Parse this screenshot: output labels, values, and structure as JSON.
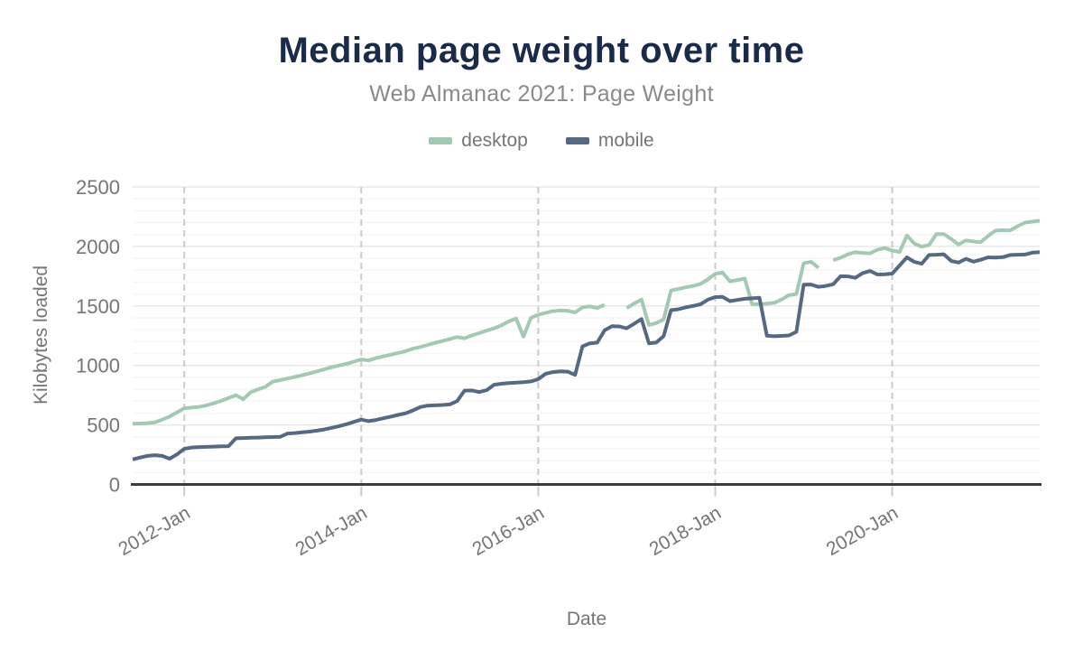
{
  "header": {
    "title": "Median page weight over time",
    "subtitle": "Web Almanac 2021: Page Weight"
  },
  "chart_data": {
    "type": "line",
    "title": "Median page weight over time",
    "subtitle": "Web Almanac 2021: Page Weight",
    "xlabel": "Date",
    "ylabel": "Kilobytes loaded",
    "ylim": [
      0,
      2500
    ],
    "y_ticks": [
      0,
      500,
      1000,
      1500,
      2000,
      2500
    ],
    "minor_gridline_step": 100,
    "grid": "on",
    "legend_position": "top",
    "x_unit": "month",
    "x_ticks": [
      {
        "label": "2012-Jan",
        "month": "2012-01"
      },
      {
        "label": "2014-Jan",
        "month": "2014-01"
      },
      {
        "label": "2016-Jan",
        "month": "2016-01"
      },
      {
        "label": "2018-Jan",
        "month": "2018-01"
      },
      {
        "label": "2020-Jan",
        "month": "2020-01"
      }
    ],
    "x": [
      "2011-06",
      "2011-07",
      "2011-08",
      "2011-09",
      "2011-10",
      "2011-11",
      "2011-12",
      "2012-01",
      "2012-02",
      "2012-03",
      "2012-04",
      "2012-05",
      "2012-06",
      "2012-07",
      "2012-08",
      "2012-09",
      "2012-10",
      "2012-11",
      "2012-12",
      "2013-01",
      "2013-02",
      "2013-03",
      "2013-04",
      "2013-05",
      "2013-06",
      "2013-07",
      "2013-08",
      "2013-09",
      "2013-10",
      "2013-11",
      "2013-12",
      "2014-01",
      "2014-02",
      "2014-03",
      "2014-04",
      "2014-05",
      "2014-06",
      "2014-07",
      "2014-08",
      "2014-09",
      "2014-10",
      "2014-11",
      "2014-12",
      "2015-01",
      "2015-02",
      "2015-03",
      "2015-04",
      "2015-05",
      "2015-06",
      "2015-07",
      "2015-08",
      "2015-09",
      "2015-10",
      "2015-11",
      "2015-12",
      "2016-01",
      "2016-02",
      "2016-03",
      "2016-04",
      "2016-05",
      "2016-06",
      "2016-07",
      "2016-08",
      "2016-09",
      "2016-10",
      "2016-11",
      "2016-12",
      "2017-01",
      "2017-02",
      "2017-03",
      "2017-04",
      "2017-05",
      "2017-06",
      "2017-07",
      "2017-08",
      "2017-09",
      "2017-10",
      "2017-11",
      "2017-12",
      "2018-01",
      "2018-02",
      "2018-03",
      "2018-04",
      "2018-05",
      "2018-06",
      "2018-07",
      "2018-08",
      "2018-09",
      "2018-10",
      "2018-11",
      "2018-12",
      "2019-01",
      "2019-02",
      "2019-03",
      "2019-04",
      "2019-05",
      "2019-06",
      "2019-07",
      "2019-08",
      "2019-09",
      "2019-10",
      "2019-11",
      "2019-12",
      "2020-01",
      "2020-02",
      "2020-03",
      "2020-04",
      "2020-05",
      "2020-06",
      "2020-07",
      "2020-08",
      "2020-09",
      "2020-10",
      "2020-11",
      "2020-12",
      "2021-01",
      "2021-02",
      "2021-03",
      "2021-04",
      "2021-05",
      "2021-06",
      "2021-07",
      "2021-08",
      "2021-09"
    ],
    "series": [
      {
        "name": "desktop",
        "color": "#a4c9b3",
        "values": [
          510,
          512,
          515,
          522,
          545,
          570,
          605,
          640,
          646,
          652,
          665,
          682,
          702,
          726,
          750,
          716,
          775,
          798,
          820,
          864,
          876,
          890,
          904,
          918,
          934,
          950,
          968,
          985,
          1000,
          1014,
          1032,
          1050,
          1042,
          1062,
          1076,
          1090,
          1105,
          1120,
          1140,
          1155,
          1172,
          1190,
          1205,
          1222,
          1238,
          1228,
          1252,
          1272,
          1292,
          1312,
          1336,
          1370,
          1394,
          1242,
          1400,
          1426,
          1442,
          1456,
          1462,
          1458,
          1445,
          1488,
          1496,
          1482,
          1510,
          null,
          null,
          1482,
          1520,
          1552,
          1340,
          1356,
          1386,
          1630,
          1642,
          1656,
          1668,
          1684,
          1722,
          1770,
          1780,
          1706,
          1718,
          1730,
          1516,
          1514,
          1520,
          1526,
          1554,
          1590,
          1600,
          1858,
          1871,
          1820,
          null,
          1884,
          1905,
          1934,
          1952,
          1945,
          1942,
          1972,
          1986,
          1965,
          1954,
          2092,
          2024,
          1998,
          2012,
          2105,
          2104,
          2062,
          2016,
          2050,
          2042,
          2036,
          2088,
          2133,
          2136,
          2134,
          2170,
          2200,
          2208,
          2216
        ]
      },
      {
        "name": "mobile",
        "color": "#556a82",
        "values": [
          210,
          226,
          240,
          246,
          240,
          216,
          252,
          300,
          310,
          314,
          316,
          318,
          320,
          322,
          388,
          390,
          392,
          394,
          396,
          398,
          400,
          428,
          432,
          438,
          444,
          452,
          462,
          476,
          490,
          506,
          526,
          545,
          532,
          542,
          556,
          570,
          584,
          598,
          622,
          650,
          662,
          665,
          668,
          672,
          700,
          788,
          790,
          776,
          792,
          838,
          846,
          852,
          856,
          860,
          866,
          885,
          930,
          944,
          950,
          948,
          920,
          1160,
          1186,
          1192,
          1295,
          1330,
          1328,
          1312,
          1350,
          1390,
          1186,
          1192,
          1246,
          1464,
          1472,
          1488,
          1500,
          1514,
          1552,
          1574,
          1576,
          1540,
          1550,
          1560,
          1564,
          1568,
          1250,
          1245,
          1248,
          1252,
          1282,
          1678,
          1680,
          1660,
          1668,
          1682,
          1750,
          1748,
          1736,
          1776,
          1794,
          1764,
          1766,
          1772,
          1840,
          1908,
          1870,
          1854,
          1928,
          1930,
          1934,
          1878,
          1864,
          1896,
          1872,
          1888,
          1908,
          1906,
          1910,
          1928,
          1930,
          1932,
          1948,
          1952
        ]
      }
    ]
  }
}
